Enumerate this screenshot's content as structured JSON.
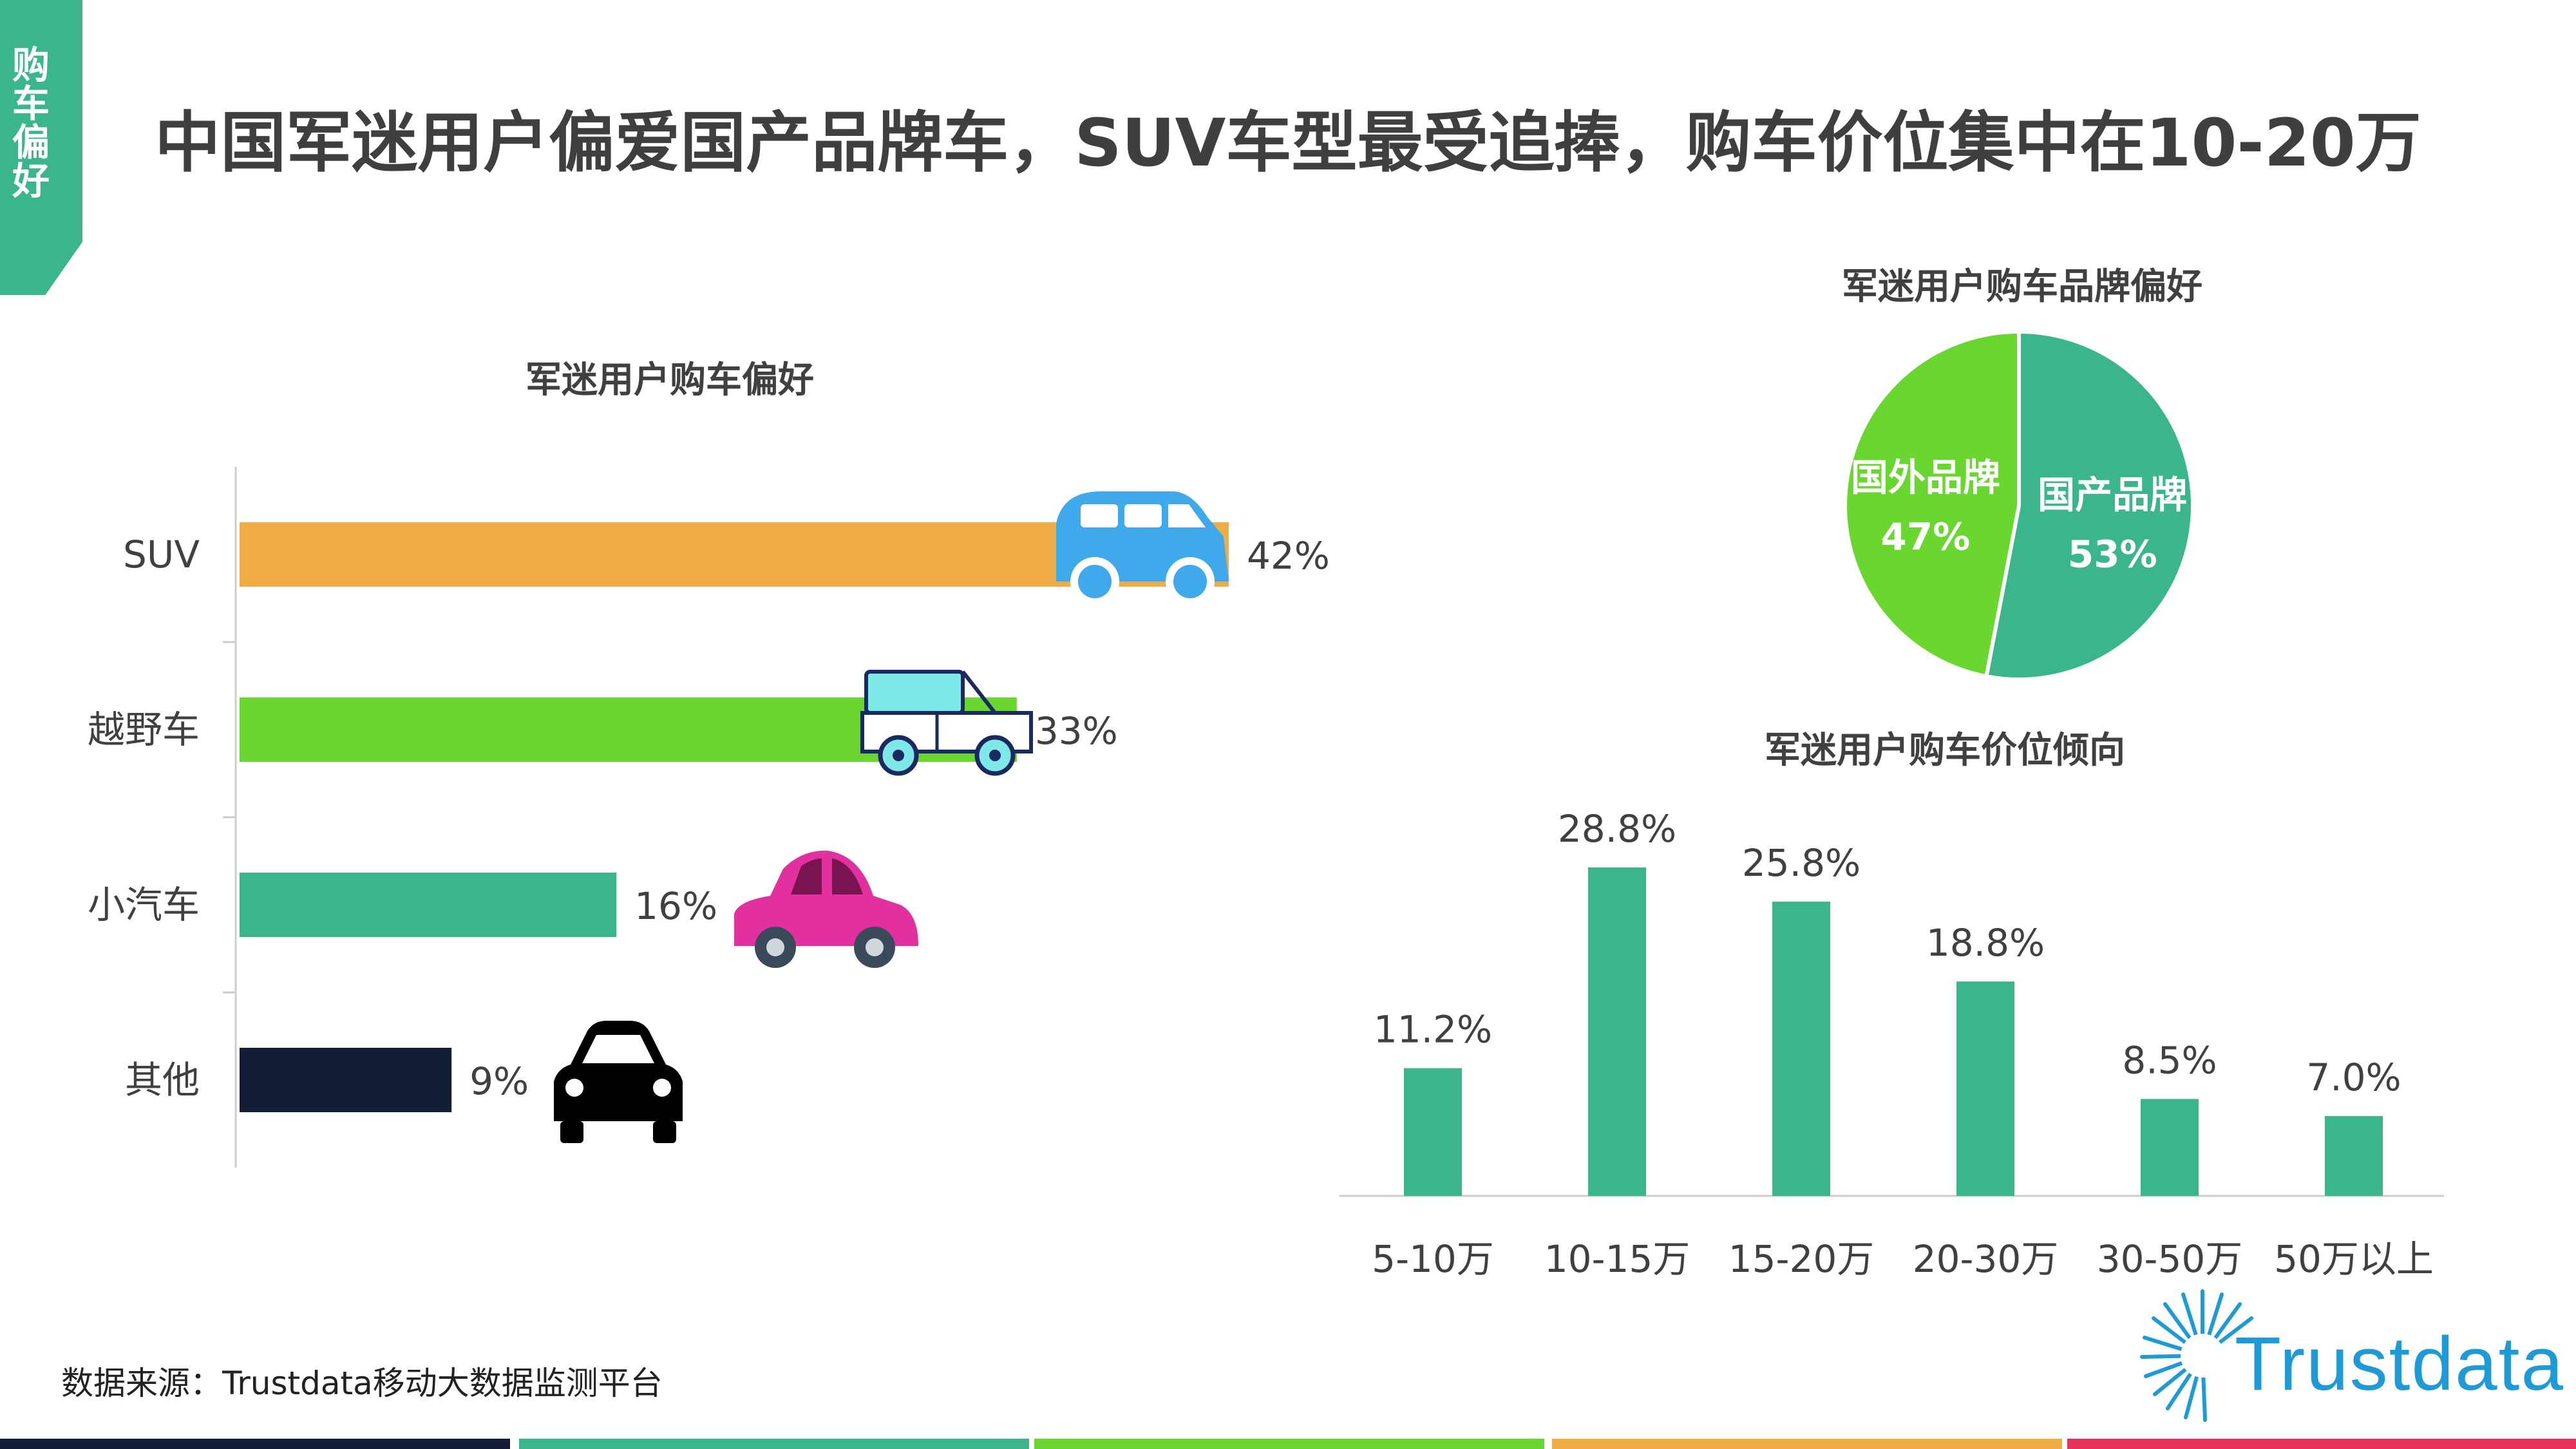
{
  "side_tab": "购车偏好",
  "title": "中国军迷用户偏爱国产品牌车，SUV车型最受追捧，购车价位集中在10-20万",
  "source": "数据来源：Trustdata移动大数据监测平台",
  "logo": "Trustdata",
  "footer_colors": [
    "#131d35",
    "#3bb58a",
    "#6ad630",
    "#f0ad45",
    "#e8325a"
  ],
  "chart_data": [
    {
      "type": "bar",
      "orientation": "horizontal",
      "title": "军迷用户购车偏好",
      "categories": [
        "SUV",
        "越野车",
        "小汽车",
        "其他"
      ],
      "values": [
        42,
        33,
        16,
        9
      ],
      "value_labels": [
        "42%",
        "33%",
        "16%",
        "9%"
      ],
      "colors": [
        "#f0ad45",
        "#6ad630",
        "#3bb58a",
        "#131d35"
      ],
      "icons": [
        "suv-car-icon",
        "jeep-icon",
        "sedan-car-icon",
        "black-car-icon"
      ]
    },
    {
      "type": "pie",
      "title": "军迷用户购车品牌偏好",
      "slices": [
        {
          "label": "国产品牌",
          "value": 53,
          "value_label": "53%",
          "color": "#3bb58a"
        },
        {
          "label": "国外品牌",
          "value": 47,
          "value_label": "47%",
          "color": "#6ad630"
        }
      ]
    },
    {
      "type": "bar",
      "title": "军迷用户购车价位倾向",
      "categories": [
        "5-10万",
        "10-15万",
        "15-20万",
        "20-30万",
        "30-50万",
        "50万以上"
      ],
      "values": [
        11.2,
        28.8,
        25.8,
        18.8,
        8.5,
        7.0
      ],
      "value_labels": [
        "11.2%",
        "28.8%",
        "25.8%",
        "18.8%",
        "8.5%",
        "7.0%"
      ],
      "color": "#3bb58a"
    }
  ]
}
